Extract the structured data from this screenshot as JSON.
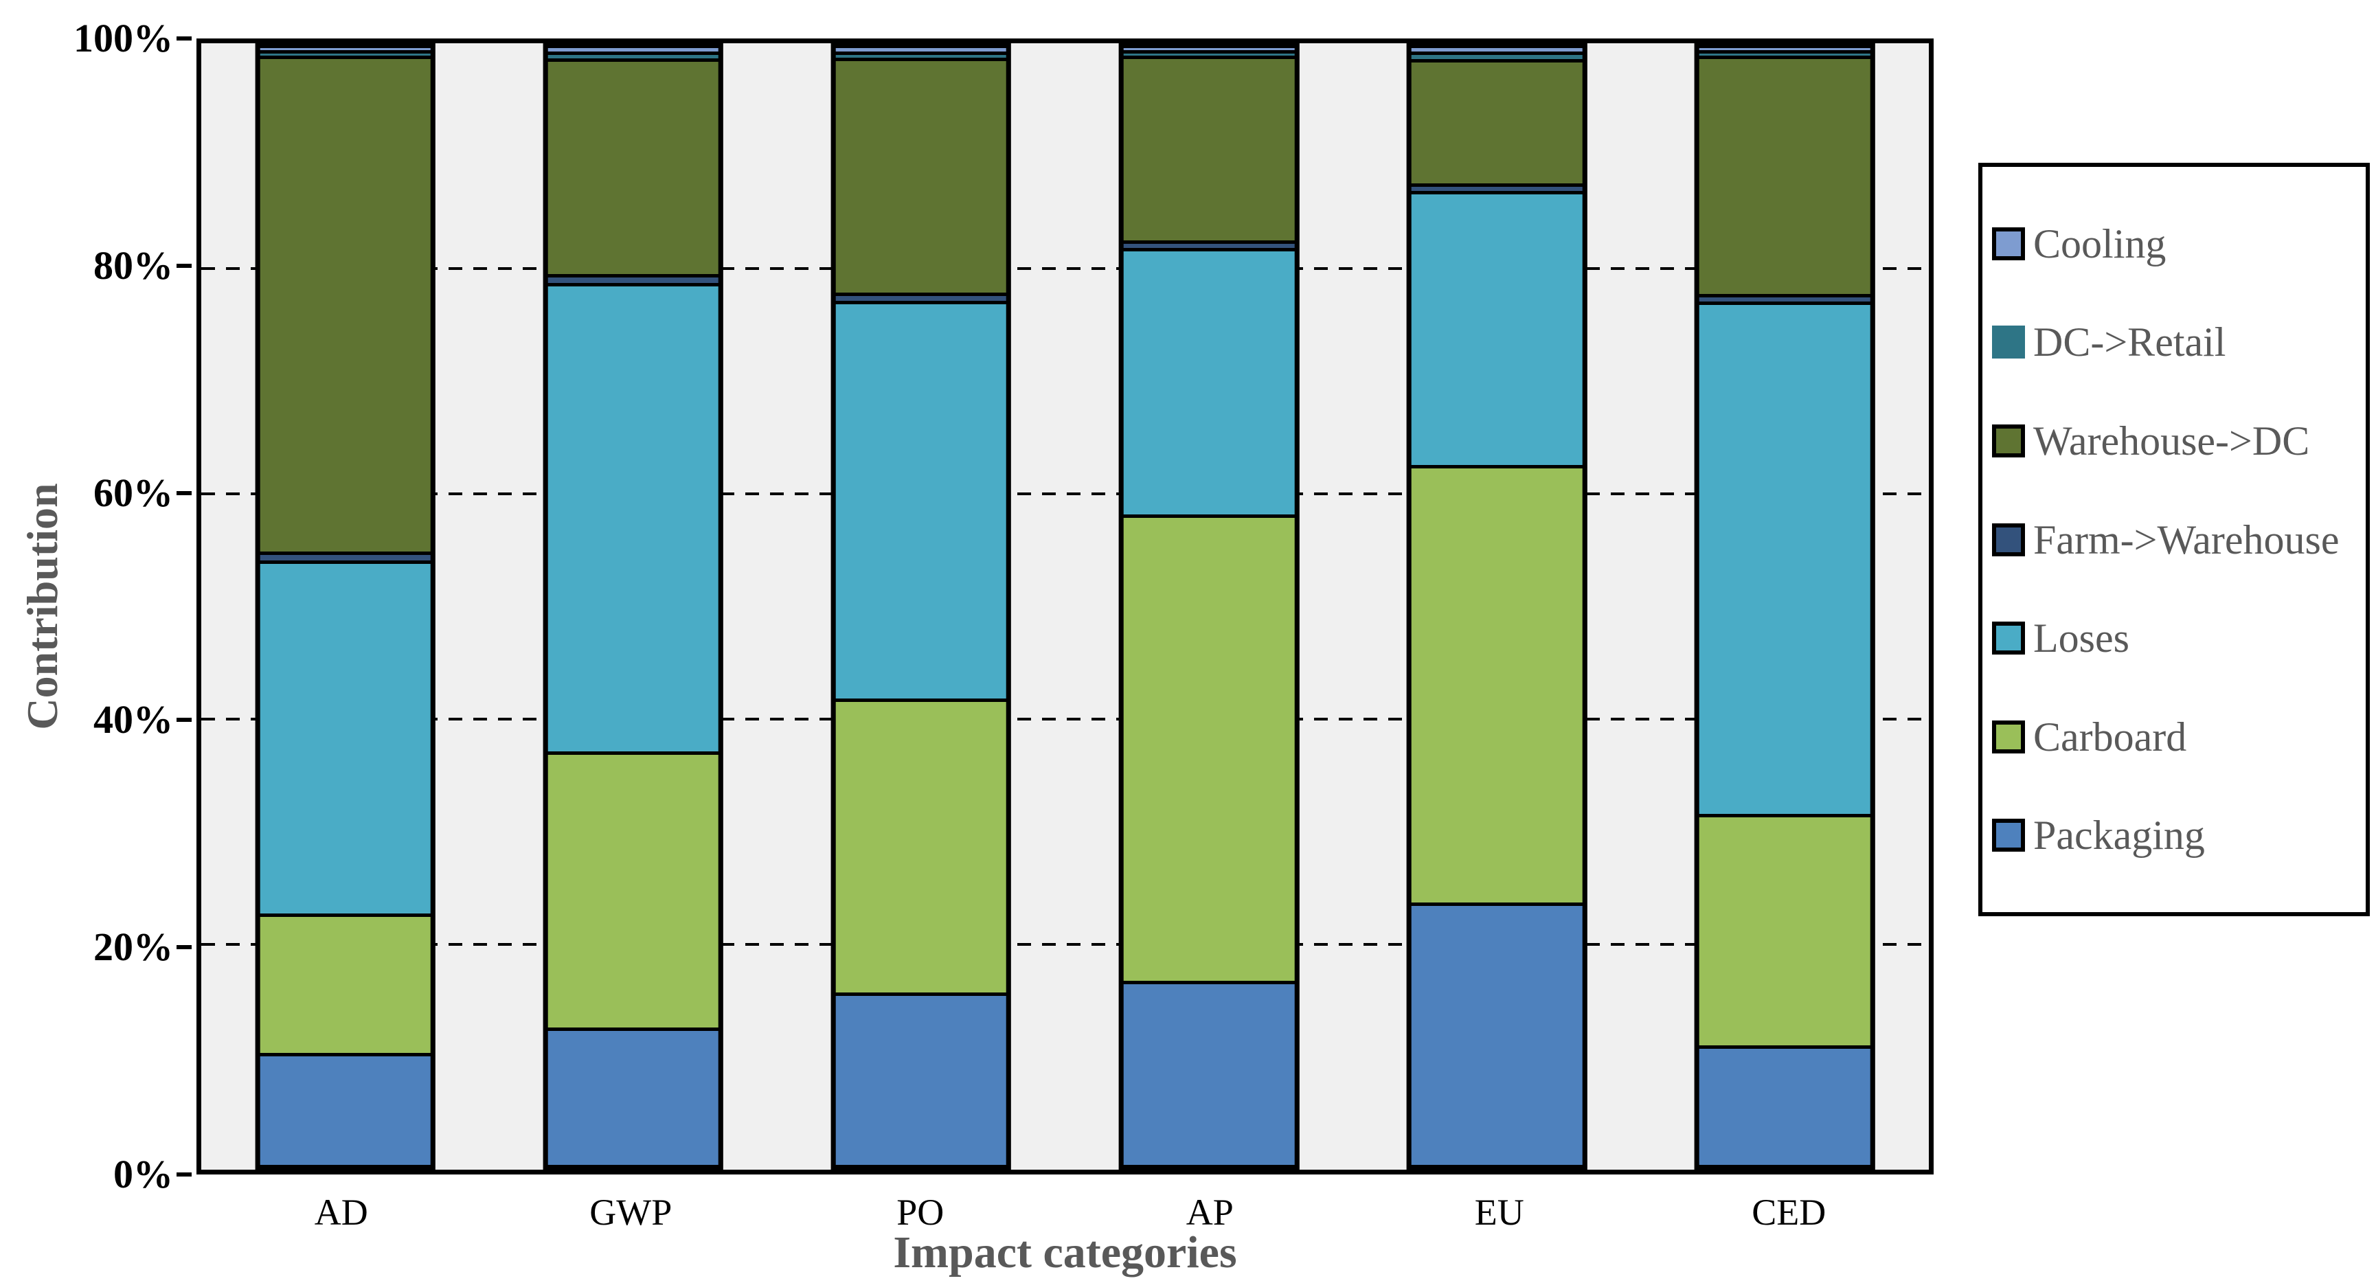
{
  "axes": {
    "x_title": "Impact categories",
    "y_title": "Contribution"
  },
  "colors": {
    "plot_background": "#F0F0F0",
    "outer_background": "#FFFFFF",
    "axis_and_border": "#000000",
    "gridline": "#000000",
    "title_text": "#595959",
    "legend_text": "#595959",
    "tick_text": "#000000"
  },
  "chart_data": {
    "type": "bar",
    "subtype": "100%-stacked-column",
    "title": "",
    "xlabel": "Impact categories",
    "ylabel": "Contribution",
    "categories": [
      "AD",
      "GWP",
      "PO",
      "AP",
      "EU",
      "CED"
    ],
    "y_ticks": [
      "0%",
      "20%",
      "40%",
      "60%",
      "80%",
      "100%"
    ],
    "ylim": [
      0,
      100
    ],
    "grid_values": [
      20,
      40,
      60,
      80
    ],
    "grid_style": "dashed",
    "legend_position": "right",
    "bar_width_pct": 10.44,
    "series": [
      {
        "name": "Packaging",
        "color": "#4E81BD",
        "values": [
          9.9,
          12.2,
          13.9,
          16.5,
          23.6,
          10.6
        ]
      },
      {
        "name": "Carboard",
        "color": "#9ABF59",
        "values": [
          12.4,
          24.9,
          23.8,
          42.2,
          39.6,
          20.8
        ]
      },
      {
        "name": "Loses",
        "color": "#4AACC6",
        "values": [
          31.9,
          42.4,
          32.4,
          24.0,
          24.7,
          46.4
        ]
      },
      {
        "name": "Farm->Warehouse",
        "color": "#33527C",
        "values": [
          0.5,
          0.5,
          0.4,
          0.4,
          0.4,
          0.4
        ]
      },
      {
        "name": "Warehouse->DC",
        "color": "#5F7432",
        "values": [
          44.9,
          19.4,
          19.0,
          16.5,
          11.0,
          21.4
        ]
      },
      {
        "name": "DC->Retail",
        "color": "#2E7586",
        "values": [
          0.2,
          0.3,
          0.2,
          0.2,
          0.4,
          0.2
        ]
      },
      {
        "name": "Cooling",
        "color": "#7E9CD0",
        "values": [
          0.2,
          0.3,
          0.3,
          0.2,
          0.3,
          0.2
        ]
      }
    ],
    "legend": {
      "items": [
        {
          "label": "Cooling",
          "swatch_border": true
        },
        {
          "label": "DC->Retail",
          "swatch_border": false
        },
        {
          "label": "Warehouse->DC",
          "swatch_border": true
        },
        {
          "label": "Farm->Warehouse",
          "swatch_border": true
        },
        {
          "label": "Loses",
          "swatch_border": true
        },
        {
          "label": "Carboard",
          "swatch_border": true
        },
        {
          "label": "Packaging",
          "swatch_border": true
        }
      ]
    }
  }
}
